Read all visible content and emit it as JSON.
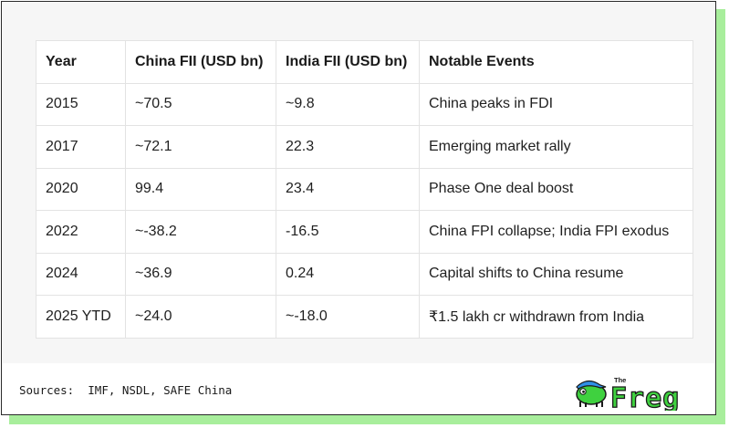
{
  "table": {
    "headers": [
      "Year",
      "China FII (USD bn)",
      "India FII (USD bn)",
      "Notable Events"
    ],
    "rows": [
      [
        "2015",
        "~70.5",
        "~9.8",
        "China peaks in FDI"
      ],
      [
        "2017",
        "~72.1",
        "22.3",
        "Emerging market rally"
      ],
      [
        "2020",
        "99.4",
        "23.4",
        "Phase One deal boost"
      ],
      [
        "2022",
        "~-38.2",
        "-16.5",
        "China FPI collapse; India FPI exodus"
      ],
      [
        "2024",
        "~36.9",
        "0.24",
        "Capital shifts to China resume"
      ],
      [
        "2025 YTD",
        "~24.0",
        "~-18.0",
        "₹1.5 lakh cr withdrawn from India"
      ]
    ]
  },
  "footer": {
    "sources_label": "Sources:",
    "sources_text": "IMF, NSDL, SAFE China"
  },
  "logo": {
    "small_text": "The",
    "brand_text": "Freg",
    "icon": "frog-with-cap-icon",
    "colors": {
      "brand_green": "#3fd13f",
      "cap_blue": "#2f8fe6",
      "outline": "#1a1a1a"
    }
  },
  "colors": {
    "accent_shadow": "#a8ee9c",
    "panel_bg": "#f6f6f6",
    "grid_line": "#e3e3e3"
  }
}
